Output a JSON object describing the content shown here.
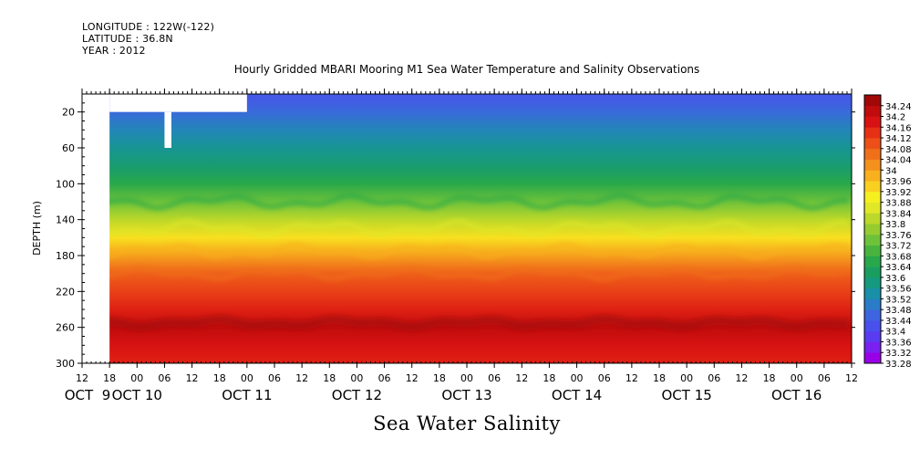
{
  "header": {
    "longitude": "LONGITUDE : 122W(-122)",
    "latitude": "LATITUDE : 36.8N",
    "year": "YEAR : 2012"
  },
  "chart_data": {
    "type": "heatmap",
    "title": "Hourly Gridded MBARI Mooring M1 Sea Water Temperature and Salinity Observations",
    "xlabel": "Sea Water Salinity",
    "ylabel": "DEPTH (m)",
    "x_axis": {
      "start": "2012-10-09 12:00",
      "end": "2012-10-16 12:00",
      "hour_ticks": [
        "12",
        "18",
        "00",
        "06",
        "12",
        "18",
        "00",
        "06",
        "12",
        "18",
        "00",
        "06",
        "12",
        "18",
        "00",
        "06",
        "12",
        "18",
        "00",
        "06",
        "12",
        "18",
        "00",
        "06",
        "12",
        "18",
        "00",
        "06",
        "12"
      ],
      "day_labels": [
        {
          "label": "OCT  9",
          "date": "2012-10-09"
        },
        {
          "label": "OCT 10",
          "date": "2012-10-10"
        },
        {
          "label": "OCT 11",
          "date": "2012-10-11"
        },
        {
          "label": "OCT 12",
          "date": "2012-10-12"
        },
        {
          "label": "OCT 13",
          "date": "2012-10-13"
        },
        {
          "label": "OCT 14",
          "date": "2012-10-14"
        },
        {
          "label": "OCT 15",
          "date": "2012-10-15"
        },
        {
          "label": "OCT 16",
          "date": "2012-10-16"
        }
      ]
    },
    "y_axis": {
      "range": [
        0,
        300
      ],
      "reversed": true,
      "ticks": [
        20,
        60,
        100,
        140,
        180,
        220,
        260,
        300
      ]
    },
    "colorbar": {
      "levels": [
        "33.28",
        "33.32",
        "33.36",
        "33.4",
        "33.44",
        "33.48",
        "33.52",
        "33.56",
        "33.6",
        "33.64",
        "33.68",
        "33.72",
        "33.76",
        "33.8",
        "33.84",
        "33.88",
        "33.92",
        "33.96",
        "34",
        "34.04",
        "34.08",
        "34.12",
        "34.16",
        "34.2",
        "34.24"
      ],
      "colors": [
        "#9a00e6",
        "#7a20f0",
        "#5a3cf0",
        "#4a50ec",
        "#3e64e0",
        "#2a7cc8",
        "#1a90a8",
        "#159a80",
        "#1a9e60",
        "#28a84a",
        "#48b43e",
        "#6ec23a",
        "#96cc30",
        "#bcd82a",
        "#e0e828",
        "#f6f020",
        "#fad020",
        "#f8b01e",
        "#f4901c",
        "#f0701a",
        "#ec5018",
        "#e63016",
        "#d81212",
        "#c00c0c",
        "#a00808"
      ]
    },
    "profile": [
      {
        "depth": 5,
        "salinity": 33.42
      },
      {
        "depth": 20,
        "salinity": 33.45
      },
      {
        "depth": 40,
        "salinity": 33.5
      },
      {
        "depth": 60,
        "salinity": 33.54
      },
      {
        "depth": 80,
        "salinity": 33.58
      },
      {
        "depth": 100,
        "salinity": 33.64
      },
      {
        "depth": 120,
        "salinity": 33.72
      },
      {
        "depth": 140,
        "salinity": 33.8
      },
      {
        "depth": 160,
        "salinity": 33.9
      },
      {
        "depth": 180,
        "salinity": 33.98
      },
      {
        "depth": 200,
        "salinity": 34.06
      },
      {
        "depth": 220,
        "salinity": 34.1
      },
      {
        "depth": 240,
        "salinity": 34.14
      },
      {
        "depth": 260,
        "salinity": 34.2
      },
      {
        "depth": 280,
        "salinity": 34.16
      },
      {
        "depth": 300,
        "salinity": 34.14
      }
    ],
    "missing_regions": [
      {
        "from": "2012-10-09 12:00",
        "to": "2012-10-09 18:00",
        "depth_top": 0,
        "depth_bottom": 300
      },
      {
        "from": "2012-10-09 18:00",
        "to": "2012-10-11 00:00",
        "depth_top": 0,
        "depth_bottom": 20
      },
      {
        "from": "2012-10-10 06:00",
        "to": "2012-10-10 07:30",
        "depth_top": 20,
        "depth_bottom": 60
      }
    ]
  }
}
